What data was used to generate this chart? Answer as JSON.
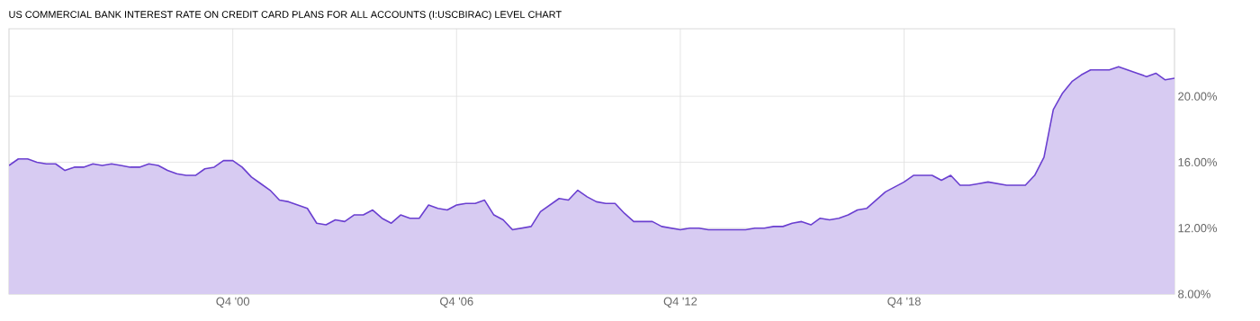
{
  "chart_data": {
    "type": "area",
    "title": "US COMMERCIAL BANK INTEREST RATE ON CREDIT CARD PLANS FOR ALL ACCOUNTS (I:USCBIRAC) LEVEL CHART",
    "x": [
      "1994-10",
      "1995-01",
      "1995-04",
      "1995-07",
      "1995-10",
      "1996-01",
      "1996-04",
      "1996-07",
      "1996-10",
      "1997-01",
      "1997-04",
      "1997-07",
      "1997-10",
      "1998-01",
      "1998-04",
      "1998-07",
      "1998-10",
      "1999-01",
      "1999-04",
      "1999-07",
      "1999-10",
      "2000-01",
      "2000-04",
      "2000-07",
      "2000-10",
      "2001-01",
      "2001-04",
      "2001-07",
      "2001-10",
      "2002-01",
      "2002-04",
      "2002-07",
      "2002-10",
      "2003-01",
      "2003-04",
      "2003-07",
      "2003-10",
      "2004-01",
      "2004-04",
      "2004-07",
      "2004-10",
      "2005-01",
      "2005-04",
      "2005-07",
      "2005-10",
      "2006-01",
      "2006-04",
      "2006-07",
      "2006-10",
      "2007-01",
      "2007-04",
      "2007-07",
      "2007-10",
      "2008-01",
      "2008-04",
      "2008-07",
      "2008-10",
      "2009-01",
      "2009-04",
      "2009-07",
      "2009-10",
      "2010-01",
      "2010-04",
      "2010-07",
      "2010-10",
      "2011-01",
      "2011-04",
      "2011-07",
      "2011-10",
      "2012-01",
      "2012-04",
      "2012-07",
      "2012-10",
      "2013-01",
      "2013-04",
      "2013-07",
      "2013-10",
      "2014-01",
      "2014-04",
      "2014-07",
      "2014-10",
      "2015-01",
      "2015-04",
      "2015-07",
      "2015-10",
      "2016-01",
      "2016-04",
      "2016-07",
      "2016-10",
      "2017-01",
      "2017-04",
      "2017-07",
      "2017-10",
      "2018-01",
      "2018-04",
      "2018-07",
      "2018-10",
      "2019-01",
      "2019-04",
      "2019-07",
      "2019-10",
      "2020-01",
      "2020-04",
      "2020-07",
      "2020-10",
      "2021-01",
      "2021-04",
      "2021-07",
      "2021-10",
      "2022-01",
      "2022-04",
      "2022-07",
      "2022-10",
      "2023-01",
      "2023-04",
      "2023-07",
      "2023-10",
      "2024-01",
      "2024-04",
      "2024-07",
      "2024-10",
      "2025-01",
      "2025-04",
      "2025-07",
      "2025-10",
      "2026-01"
    ],
    "series": [
      {
        "color": "#6a3fd0",
        "values": [
          15.8,
          16.2,
          16.2,
          16.0,
          15.9,
          15.9,
          15.5,
          15.7,
          15.7,
          15.9,
          15.8,
          15.9,
          15.8,
          15.7,
          15.7,
          15.9,
          15.8,
          15.5,
          15.3,
          15.2,
          15.2,
          15.6,
          15.7,
          16.1,
          16.1,
          15.7,
          15.1,
          14.7,
          14.3,
          13.7,
          13.6,
          13.4,
          13.2,
          12.3,
          12.2,
          12.5,
          12.4,
          12.8,
          12.8,
          13.1,
          12.6,
          12.3,
          12.8,
          12.6,
          12.6,
          13.4,
          13.2,
          13.1,
          13.4,
          13.5,
          13.5,
          13.7,
          12.8,
          12.5,
          11.9,
          12.0,
          12.1,
          13.0,
          13.4,
          13.8,
          13.7,
          14.3,
          13.9,
          13.6,
          13.5,
          13.5,
          12.9,
          12.4,
          12.4,
          12.4,
          12.1,
          12.0,
          11.9,
          12.0,
          12.0,
          11.9,
          11.9,
          11.9,
          11.9,
          11.9,
          12.0,
          12.0,
          12.1,
          12.1,
          12.3,
          12.4,
          12.2,
          12.6,
          12.5,
          12.6,
          12.8,
          13.1,
          13.2,
          13.7,
          14.2,
          14.5,
          14.8,
          15.2,
          15.2,
          15.2,
          14.9,
          15.2,
          14.6,
          14.6,
          14.7,
          14.8,
          14.7,
          14.6,
          14.6,
          14.6,
          15.2,
          16.3,
          19.2,
          20.2,
          20.9,
          21.3,
          21.6,
          21.6,
          21.6,
          21.8,
          21.6,
          21.4,
          21.2,
          21.4,
          21.0,
          21.1
        ]
      }
    ],
    "xlim": [
      "1994-10",
      "2026-01"
    ],
    "ylim": [
      8,
      24.1
    ],
    "xticks": [
      {
        "value": "2000-10",
        "label": "Q4 '00"
      },
      {
        "value": "2006-10",
        "label": "Q4 '06"
      },
      {
        "value": "2012-10",
        "label": "Q4 '12"
      },
      {
        "value": "2018-10",
        "label": "Q4 '18"
      }
    ],
    "yticks": [
      {
        "value": 8,
        "label": "8.00%"
      },
      {
        "value": 12,
        "label": "12.00%"
      },
      {
        "value": 16,
        "label": "16.00%"
      },
      {
        "value": 20,
        "label": "20.00%"
      }
    ],
    "grid": true
  }
}
